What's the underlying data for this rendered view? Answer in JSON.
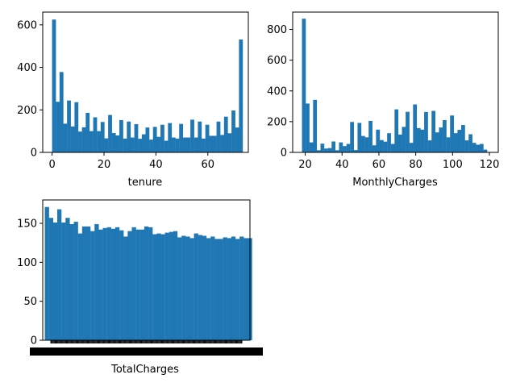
{
  "figure": {
    "background": "#ffffff",
    "bar_color": "#1f77b4"
  },
  "chart_data": [
    {
      "type": "bar",
      "title": "",
      "xlabel": "tenure",
      "ylabel": "",
      "xlim": [
        -3.6,
        75.6
      ],
      "ylim": [
        0,
        660
      ],
      "xticks": [
        0,
        20,
        40,
        60
      ],
      "yticks": [
        0,
        200,
        400,
        600
      ],
      "bin_start": 0,
      "bin_width": 1.44,
      "values": [
        625,
        238,
        378,
        135,
        244,
        122,
        236,
        98,
        118,
        186,
        100,
        165,
        100,
        143,
        66,
        176,
        91,
        80,
        152,
        65,
        145,
        70,
        133,
        64,
        85,
        117,
        60,
        120,
        73,
        130,
        55,
        138,
        70,
        65,
        134,
        70,
        70,
        154,
        70,
        145,
        65,
        130,
        78,
        78,
        145,
        82,
        168,
        90,
        197,
        117,
        531
      ]
    },
    {
      "type": "bar",
      "title": "",
      "xlabel": "MonthlyCharges",
      "ylabel": "",
      "xlim": [
        13.2,
        124.8
      ],
      "ylim": [
        0,
        913
      ],
      "xticks": [
        20,
        40,
        60,
        80,
        100,
        120
      ],
      "yticks": [
        0,
        200,
        400,
        600,
        800
      ],
      "bin_start": 18.25,
      "bin_width": 2.01,
      "values": [
        870,
        318,
        65,
        342,
        14,
        57,
        25,
        28,
        71,
        14,
        65,
        41,
        55,
        198,
        15,
        192,
        107,
        98,
        205,
        46,
        148,
        80,
        70,
        125,
        55,
        280,
        116,
        166,
        264,
        62,
        312,
        158,
        148,
        263,
        78,
        270,
        130,
        162,
        210,
        98,
        240,
        125,
        147,
        178,
        78,
        118,
        62,
        50,
        55,
        18
      ]
    },
    {
      "type": "bar",
      "title": "",
      "xlabel": "TotalCharges",
      "ylabel": "",
      "xlim": [
        -0.5,
        49.5
      ],
      "ylim": [
        0,
        180
      ],
      "yticks": [
        0,
        50,
        100,
        150
      ],
      "xticks_overlapping_unreadable": true,
      "bin_start": 0,
      "bin_width": 1,
      "values": [
        171,
        157,
        151,
        168,
        151,
        157,
        149,
        152,
        137,
        146,
        146,
        140,
        149,
        142,
        144,
        145,
        143,
        145,
        141,
        133,
        140,
        145,
        142,
        142,
        146,
        145,
        136,
        137,
        136,
        138,
        139,
        140,
        132,
        134,
        133,
        131,
        137,
        135,
        134,
        131,
        133,
        130,
        130,
        132,
        131,
        133,
        130,
        133,
        131,
        131
      ]
    }
  ]
}
